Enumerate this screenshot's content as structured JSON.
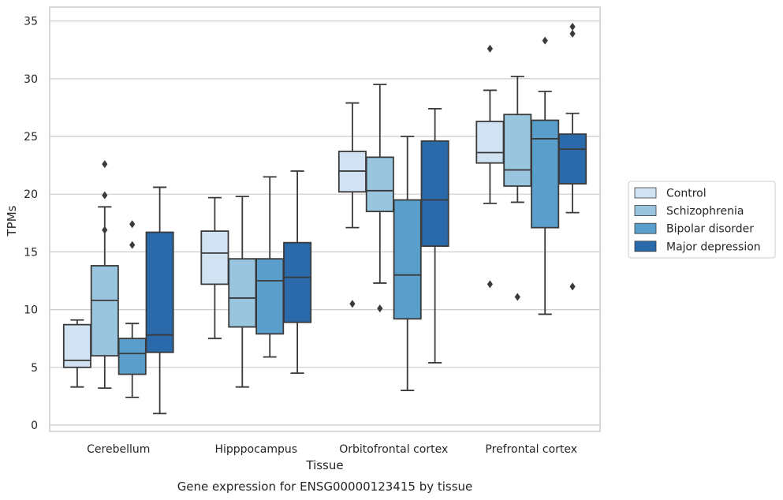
{
  "chart_data": {
    "type": "box",
    "xlabel": "Tissue",
    "ylabel": "TPMs",
    "caption": "Gene expression for ENSG00000123415 by tissue",
    "ylim": [
      -0.5,
      36
    ],
    "yticks": [
      0,
      5,
      10,
      15,
      20,
      25,
      30,
      35
    ],
    "grid": "horizontal",
    "legend_position": "right",
    "categories": [
      "Cerebellum",
      "Hipppocampus",
      "Orbitofrontal cortex",
      "Prefrontal cortex"
    ],
    "series": [
      {
        "name": "Control",
        "color": "#d1e2f2",
        "boxes": [
          {
            "whislo": 3.3,
            "q1": 5.0,
            "med": 5.6,
            "q3": 8.7,
            "whishi": 9.1,
            "fliers": []
          },
          {
            "whislo": 7.5,
            "q1": 12.2,
            "med": 14.9,
            "q3": 16.8,
            "whishi": 19.7,
            "fliers": []
          },
          {
            "whislo": 17.1,
            "q1": 20.2,
            "med": 22.0,
            "q3": 23.7,
            "whishi": 27.9,
            "fliers": [
              10.5
            ]
          },
          {
            "whislo": 19.2,
            "q1": 22.7,
            "med": 23.6,
            "q3": 26.3,
            "whishi": 29.0,
            "fliers": [
              32.6,
              12.2
            ]
          }
        ]
      },
      {
        "name": "Schizophrenia",
        "color": "#9ac5df",
        "boxes": [
          {
            "whislo": 3.2,
            "q1": 6.0,
            "med": 10.8,
            "q3": 13.8,
            "whishi": 18.9,
            "fliers": [
              22.6,
              19.9,
              16.9
            ]
          },
          {
            "whislo": 3.3,
            "q1": 8.5,
            "med": 11.0,
            "q3": 14.4,
            "whishi": 19.8,
            "fliers": []
          },
          {
            "whislo": 12.3,
            "q1": 18.5,
            "med": 20.3,
            "q3": 23.2,
            "whishi": 29.5,
            "fliers": [
              10.1
            ]
          },
          {
            "whislo": 19.3,
            "q1": 20.7,
            "med": 22.1,
            "q3": 26.9,
            "whishi": 30.2,
            "fliers": [
              11.1
            ]
          }
        ]
      },
      {
        "name": "Bipolar disorder",
        "color": "#5a9ecc",
        "boxes": [
          {
            "whislo": 2.4,
            "q1": 4.4,
            "med": 6.2,
            "q3": 7.5,
            "whishi": 8.8,
            "fliers": [
              17.4,
              15.6
            ]
          },
          {
            "whislo": 5.9,
            "q1": 7.9,
            "med": 12.5,
            "q3": 14.4,
            "whishi": 21.5,
            "fliers": []
          },
          {
            "whislo": 3.0,
            "q1": 9.2,
            "med": 13.0,
            "q3": 19.5,
            "whishi": 25.0,
            "fliers": []
          },
          {
            "whislo": 9.6,
            "q1": 17.1,
            "med": 24.8,
            "q3": 26.4,
            "whishi": 28.9,
            "fliers": [
              33.3
            ]
          }
        ]
      },
      {
        "name": "Major depression",
        "color": "#2a69aa",
        "boxes": [
          {
            "whislo": 1.0,
            "q1": 6.3,
            "med": 7.8,
            "q3": 16.7,
            "whishi": 20.6,
            "fliers": []
          },
          {
            "whislo": 4.5,
            "q1": 8.9,
            "med": 12.8,
            "q3": 15.8,
            "whishi": 22.0,
            "fliers": []
          },
          {
            "whislo": 5.4,
            "q1": 15.5,
            "med": 19.5,
            "q3": 24.6,
            "whishi": 27.4,
            "fliers": []
          },
          {
            "whislo": 18.4,
            "q1": 20.9,
            "med": 23.9,
            "q3": 25.2,
            "whishi": 27.0,
            "fliers": [
              34.5,
              33.9,
              12.0
            ]
          }
        ]
      }
    ]
  }
}
